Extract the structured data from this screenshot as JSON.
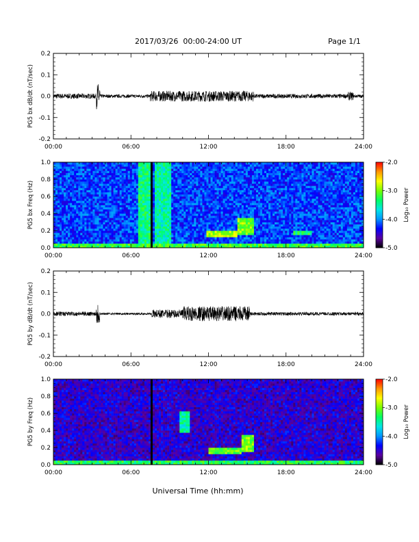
{
  "header": {
    "date_range": "2017/03/26  00:00-24:00 UT",
    "page": "Page 1/1"
  },
  "xlabel": "Universal Time (hh:mm)",
  "colorbar": {
    "label": "Log₁₀ Power",
    "ticks": [
      "-2.0",
      "-3.0",
      "-4.0",
      "-5.0"
    ],
    "range": [
      -5.0,
      -2.0
    ],
    "colormap": [
      "#000000",
      "#5a00a0",
      "#0000ff",
      "#0096ff",
      "#00e6e6",
      "#00ff64",
      "#78ff00",
      "#ffff00",
      "#ff9600",
      "#ff0000"
    ]
  },
  "chart_data": [
    {
      "type": "line",
      "ylabel": "PG5 bx dB/dt (nT/sec)",
      "xlim": [
        0,
        24
      ],
      "ylim": [
        -0.2,
        0.2
      ],
      "x_ticks": [
        "00:00",
        "06:00",
        "12:00",
        "18:00",
        "24:00"
      ],
      "y_ticks": [
        "0.2",
        "0.1",
        "0.0",
        "-0.1",
        "-0.2"
      ],
      "envelope": [
        {
          "from": 0.0,
          "to": 3.3,
          "amp": 0.012
        },
        {
          "from": 3.3,
          "to": 3.6,
          "amp": 0.06
        },
        {
          "from": 3.6,
          "to": 7.5,
          "amp": 0.008
        },
        {
          "from": 7.5,
          "to": 15.5,
          "amp": 0.025
        },
        {
          "from": 15.5,
          "to": 22.8,
          "amp": 0.01
        },
        {
          "from": 22.8,
          "to": 23.2,
          "amp": 0.02
        },
        {
          "from": 23.2,
          "to": 24.0,
          "amp": 0.008
        }
      ]
    },
    {
      "type": "heatmap",
      "ylabel": "PG5 bx Freq (Hz)",
      "xlim": [
        0,
        24
      ],
      "ylim": [
        0.0,
        1.0
      ],
      "x_ticks": [
        "00:00",
        "06:00",
        "12:00",
        "18:00",
        "24:00"
      ],
      "y_ticks": [
        "1.0",
        "0.8",
        "0.6",
        "0.4",
        "0.2",
        "0.0"
      ],
      "background_log_power": -4.2,
      "features": [
        {
          "kind": "band",
          "t0": 6.6,
          "t1": 7.5,
          "f0": 0.0,
          "f1": 1.0,
          "value": -3.4
        },
        {
          "kind": "band",
          "t0": 7.9,
          "t1": 9.2,
          "f0": 0.0,
          "f1": 1.0,
          "value": -3.5
        },
        {
          "kind": "gap",
          "t0": 7.45,
          "t1": 7.65
        },
        {
          "kind": "band",
          "t0": 0.0,
          "t1": 24.0,
          "f0": 0.0,
          "f1": 0.05,
          "value": -3.2
        },
        {
          "kind": "band",
          "t0": 11.8,
          "t1": 14.3,
          "f0": 0.13,
          "f1": 0.2,
          "value": -2.9
        },
        {
          "kind": "band",
          "t0": 14.3,
          "t1": 15.6,
          "f0": 0.15,
          "f1": 0.35,
          "value": -3.0
        },
        {
          "kind": "band",
          "t0": 18.5,
          "t1": 20.0,
          "f0": 0.15,
          "f1": 0.2,
          "value": -3.3
        }
      ]
    },
    {
      "type": "line",
      "ylabel": "PG5 by dB/dt (nT/sec)",
      "xlim": [
        0,
        24
      ],
      "ylim": [
        -0.2,
        0.2
      ],
      "x_ticks": [
        "00:00",
        "06:00",
        "12:00",
        "18:00",
        "24:00"
      ],
      "y_ticks": [
        "0.2",
        "0.1",
        "0.0",
        "-0.1",
        "-0.2"
      ],
      "envelope": [
        {
          "from": 0.0,
          "to": 3.3,
          "amp": 0.01
        },
        {
          "from": 3.3,
          "to": 3.6,
          "amp": 0.05
        },
        {
          "from": 3.6,
          "to": 7.6,
          "amp": 0.005
        },
        {
          "from": 7.6,
          "to": 10.0,
          "amp": 0.02
        },
        {
          "from": 10.0,
          "to": 15.2,
          "amp": 0.035
        },
        {
          "from": 15.2,
          "to": 24.0,
          "amp": 0.008
        }
      ]
    },
    {
      "type": "heatmap",
      "ylabel": "PG5 by Freq (Hz)",
      "xlim": [
        0,
        24
      ],
      "ylim": [
        0.0,
        1.0
      ],
      "x_ticks": [
        "00:00",
        "06:00",
        "12:00",
        "18:00",
        "24:00"
      ],
      "y_ticks": [
        "1.0",
        "0.8",
        "0.6",
        "0.4",
        "0.2",
        "0.0"
      ],
      "background_log_power": -4.5,
      "features": [
        {
          "kind": "gap",
          "t0": 7.45,
          "t1": 7.65
        },
        {
          "kind": "band",
          "t0": 0.0,
          "t1": 24.0,
          "f0": 0.0,
          "f1": 0.05,
          "value": -3.3
        },
        {
          "kind": "band",
          "t0": 9.8,
          "t1": 10.6,
          "f0": 0.38,
          "f1": 0.62,
          "value": -3.5
        },
        {
          "kind": "band",
          "t0": 12.0,
          "t1": 14.5,
          "f0": 0.13,
          "f1": 0.2,
          "value": -3.1
        },
        {
          "kind": "band",
          "t0": 14.5,
          "t1": 15.6,
          "f0": 0.15,
          "f1": 0.35,
          "value": -3.0
        }
      ]
    }
  ]
}
